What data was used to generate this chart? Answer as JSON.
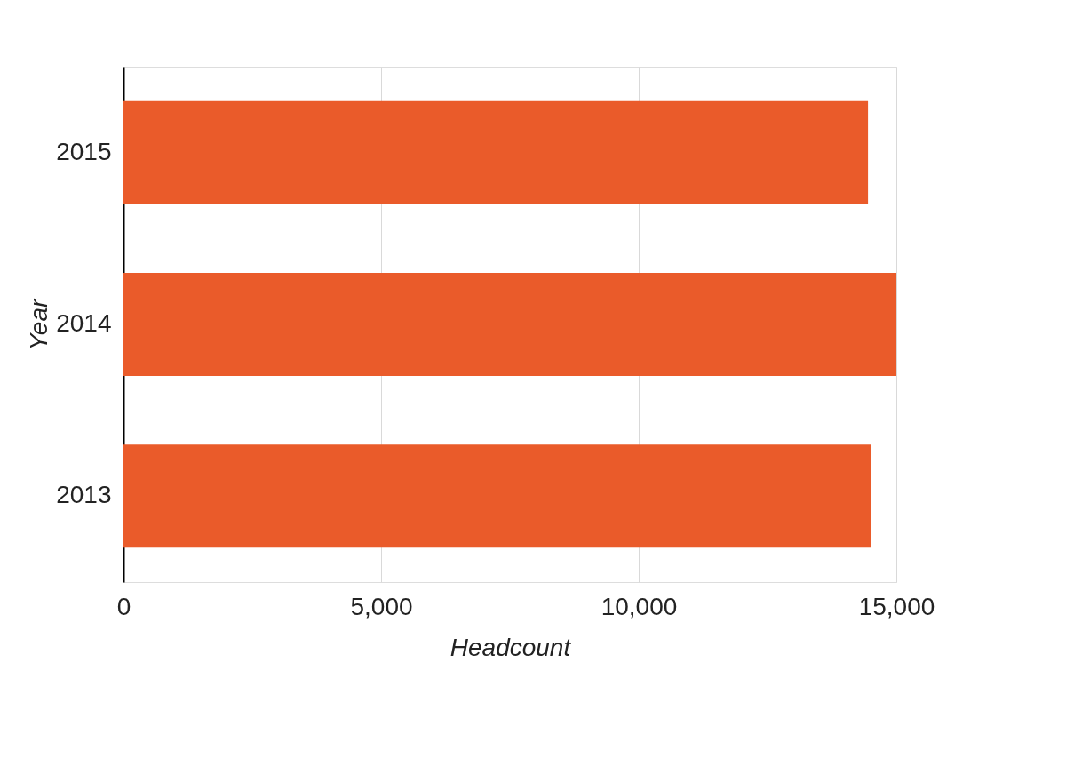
{
  "chart_data": {
    "type": "bar",
    "orientation": "horizontal",
    "xlabel": "Headcount",
    "ylabel": "Year",
    "categories": [
      "2015",
      "2014",
      "2013"
    ],
    "values": [
      14450,
      15000,
      14500
    ],
    "color": "#ea5b2a",
    "xlim": [
      0,
      15000
    ],
    "xticks": [
      {
        "value": 0,
        "label": "0"
      },
      {
        "value": 5000,
        "label": "5,000"
      },
      {
        "value": 10000,
        "label": "10,000"
      },
      {
        "value": 15000,
        "label": "15,000"
      }
    ],
    "grid": "x"
  }
}
